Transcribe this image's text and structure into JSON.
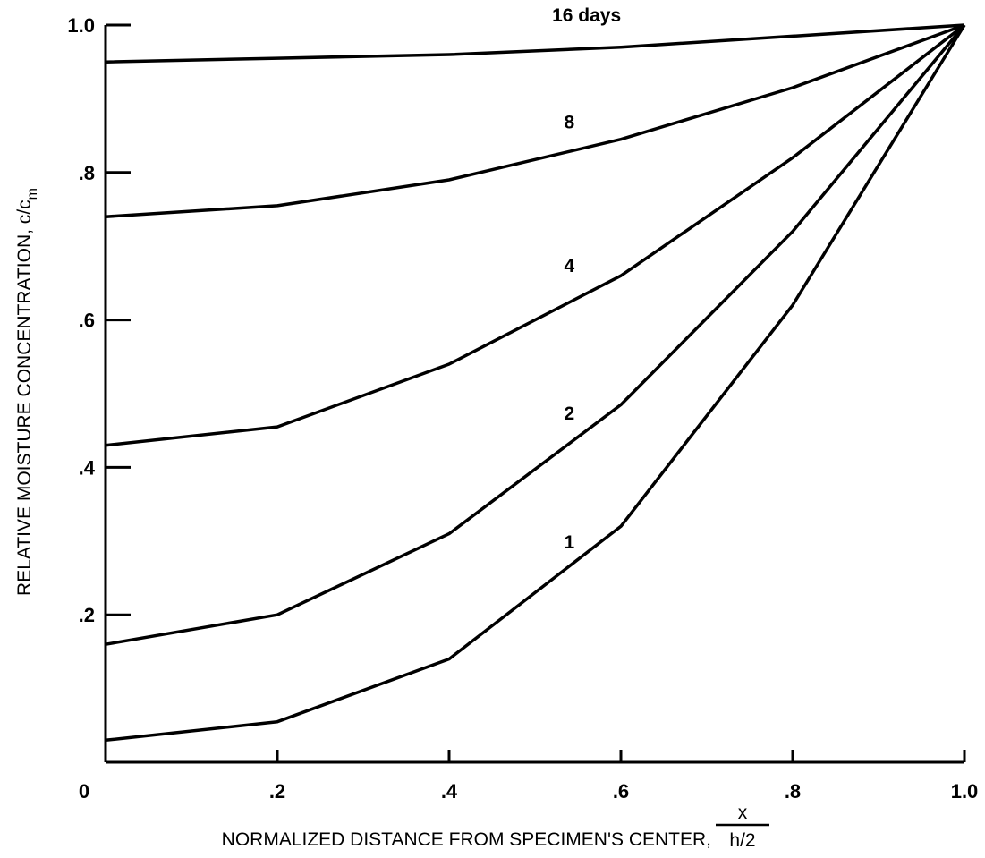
{
  "chart_data": {
    "type": "line",
    "title": "",
    "xlabel": "NORMALIZED DISTANCE FROM SPECIMEN'S CENTER,",
    "xlabel_fraction": {
      "numerator": "x",
      "denominator": "h/2"
    },
    "ylabel": "RELATIVE MOISTURE CONCENTRATION, c/c",
    "ylabel_subscript": "m",
    "xlim": [
      0,
      1.0
    ],
    "ylim": [
      0,
      1.0
    ],
    "xticks": [
      {
        "value": 0,
        "label": "0"
      },
      {
        "value": 0.2,
        "label": ".2"
      },
      {
        "value": 0.4,
        "label": ".4"
      },
      {
        "value": 0.6,
        "label": ".6"
      },
      {
        "value": 0.8,
        "label": ".8"
      },
      {
        "value": 1.0,
        "label": "1.0"
      }
    ],
    "yticks": [
      {
        "value": 0.2,
        "label": ".2"
      },
      {
        "value": 0.4,
        "label": ".4"
      },
      {
        "value": 0.6,
        "label": ".6"
      },
      {
        "value": 0.8,
        "label": ".8"
      },
      {
        "value": 1.0,
        "label": "1.0"
      }
    ],
    "grid": false,
    "legend": "inline labels on curves",
    "series": [
      {
        "name": "16 days",
        "x": [
          0,
          0.2,
          0.4,
          0.6,
          0.8,
          1.0
        ],
        "y": [
          0.95,
          0.955,
          0.96,
          0.97,
          0.985,
          1.0
        ],
        "label_at": [
          0.56,
          1.005
        ]
      },
      {
        "name": "8",
        "x": [
          0,
          0.2,
          0.4,
          0.6,
          0.8,
          1.0
        ],
        "y": [
          0.74,
          0.755,
          0.79,
          0.845,
          0.915,
          1.0
        ],
        "label_at": [
          0.54,
          0.86
        ]
      },
      {
        "name": "4",
        "x": [
          0,
          0.2,
          0.4,
          0.6,
          0.8,
          1.0
        ],
        "y": [
          0.43,
          0.455,
          0.54,
          0.66,
          0.82,
          1.0
        ],
        "label_at": [
          0.54,
          0.665
        ]
      },
      {
        "name": "2",
        "x": [
          0,
          0.2,
          0.4,
          0.6,
          0.8,
          1.0
        ],
        "y": [
          0.16,
          0.2,
          0.31,
          0.485,
          0.72,
          1.0
        ],
        "label_at": [
          0.54,
          0.465
        ]
      },
      {
        "name": "1",
        "x": [
          0,
          0.2,
          0.4,
          0.6,
          0.8,
          1.0
        ],
        "y": [
          0.03,
          0.055,
          0.14,
          0.32,
          0.62,
          1.0
        ],
        "label_at": [
          0.54,
          0.29
        ]
      }
    ]
  }
}
